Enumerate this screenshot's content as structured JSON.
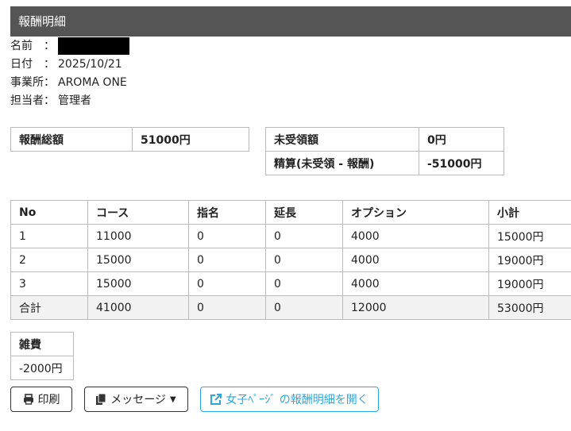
{
  "header": {
    "title": "報酬明細"
  },
  "info": {
    "name_label": "名前　：",
    "date_label": "日付　：",
    "date": "2025/10/21",
    "office_label": "事業所：",
    "office": "AROMA ONE",
    "staff_label": "担当者：",
    "staff": "管理者"
  },
  "summary": {
    "total_label": "報酬総額",
    "total": "51000円",
    "unreceived_label": "未受領額",
    "unreceived": "0円",
    "settle_label": "精算(未受領 - 報酬)",
    "settle": "-51000円"
  },
  "table": {
    "headers": [
      "No",
      "コース",
      "指名",
      "延長",
      "オプション",
      "小計"
    ],
    "rows": [
      [
        "1",
        "11000",
        "0",
        "0",
        "4000",
        "15000円"
      ],
      [
        "2",
        "15000",
        "0",
        "0",
        "4000",
        "19000円"
      ],
      [
        "3",
        "15000",
        "0",
        "0",
        "4000",
        "19000円"
      ]
    ],
    "total": [
      "合計",
      "41000",
      "0",
      "0",
      "12000",
      "53000円"
    ]
  },
  "misc": {
    "label": "雑費",
    "value": "-2000円"
  },
  "buttons": {
    "print": "印刷",
    "message": "メッセージ",
    "open": "女子ﾍﾟｰｼﾞ の報酬明細を開く"
  },
  "colors": {
    "header_bg": "#555555",
    "link": "#29a8dc"
  }
}
